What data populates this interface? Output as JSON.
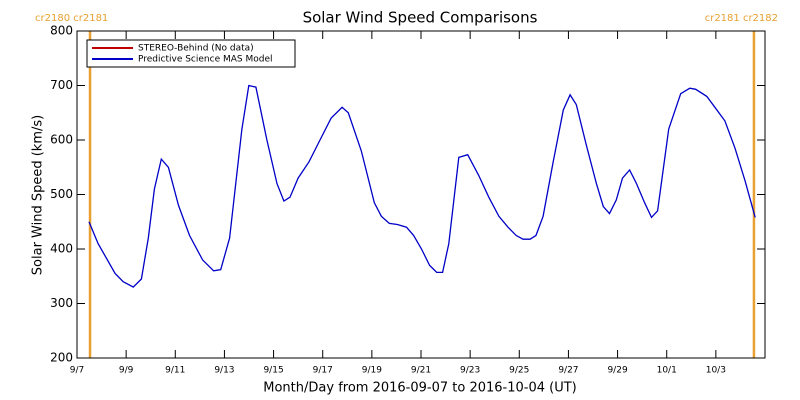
{
  "chart_data": {
    "type": "line",
    "title": "Solar Wind Speed Comparisons",
    "x_label": "Month/Day from 2016-09-07 to 2016-10-04 (UT)",
    "y_label": "Solar Wind Speed (km/s)",
    "xlim": [
      0,
      28
    ],
    "xticks": [
      {
        "value": 0,
        "label": "9/7"
      },
      {
        "value": 2,
        "label": "9/9"
      },
      {
        "value": 4,
        "label": "9/11"
      },
      {
        "value": 6,
        "label": "9/13"
      },
      {
        "value": 8,
        "label": "9/15"
      },
      {
        "value": 10,
        "label": "9/17"
      },
      {
        "value": 12,
        "label": "9/19"
      },
      {
        "value": 14,
        "label": "9/21"
      },
      {
        "value": 16,
        "label": "9/23"
      },
      {
        "value": 18,
        "label": "9/25"
      },
      {
        "value": 20,
        "label": "9/27"
      },
      {
        "value": 22,
        "label": "9/29"
      },
      {
        "value": 24,
        "label": "10/1"
      },
      {
        "value": 26,
        "label": "10/3"
      }
    ],
    "ylim": [
      200,
      800
    ],
    "yticks": [
      200,
      300,
      400,
      500,
      600,
      700,
      800
    ],
    "legend": "upper left",
    "boundaries": [
      {
        "x": 0.53,
        "label": "cr2180 cr2181",
        "color": "#e8a030"
      },
      {
        "x": 27.55,
        "label": "cr2181 cr2182",
        "color": "#e8a030"
      }
    ],
    "series": [
      {
        "name": "STEREO-Behind (No data)",
        "color": "#c00000",
        "x": [],
        "values": []
      },
      {
        "name": "Predictive Science MAS Model",
        "color": "#0000c8",
        "x": [
          0.49,
          0.86,
          1.55,
          1.88,
          2.29,
          2.62,
          2.9,
          3.15,
          3.43,
          3.72,
          4.13,
          4.58,
          5.11,
          5.56,
          5.85,
          6.21,
          6.71,
          6.99,
          7.28,
          7.73,
          8.14,
          8.42,
          8.67,
          9.0,
          9.44,
          9.89,
          10.34,
          10.79,
          11.04,
          11.57,
          12.1,
          12.39,
          12.71,
          13.04,
          13.41,
          13.7,
          14.02,
          14.35,
          14.64,
          14.88,
          15.13,
          15.54,
          15.9,
          16.35,
          16.76,
          17.17,
          17.54,
          17.87,
          18.15,
          18.44,
          18.68,
          18.97,
          19.38,
          19.79,
          20.07,
          20.32,
          20.73,
          21.14,
          21.42,
          21.67,
          21.95,
          22.2,
          22.49,
          22.77,
          23.1,
          23.38,
          23.63,
          24.08,
          24.57,
          24.94,
          25.18,
          25.63,
          25.96,
          26.37,
          26.78,
          27.19,
          27.6
        ],
        "values": [
          450,
          410,
          355,
          340,
          330,
          345,
          420,
          510,
          565,
          550,
          480,
          425,
          380,
          360,
          362,
          420,
          620,
          700,
          697,
          600,
          520,
          488,
          495,
          530,
          560,
          600,
          640,
          660,
          650,
          580,
          485,
          460,
          447,
          445,
          440,
          425,
          400,
          370,
          357,
          357,
          410,
          568,
          573,
          535,
          495,
          460,
          440,
          425,
          418,
          418,
          425,
          460,
          560,
          655,
          683,
          665,
          590,
          520,
          478,
          465,
          490,
          530,
          545,
          520,
          485,
          458,
          470,
          620,
          685,
          695,
          693,
          680,
          660,
          635,
          585,
          525,
          458
        ]
      }
    ]
  }
}
